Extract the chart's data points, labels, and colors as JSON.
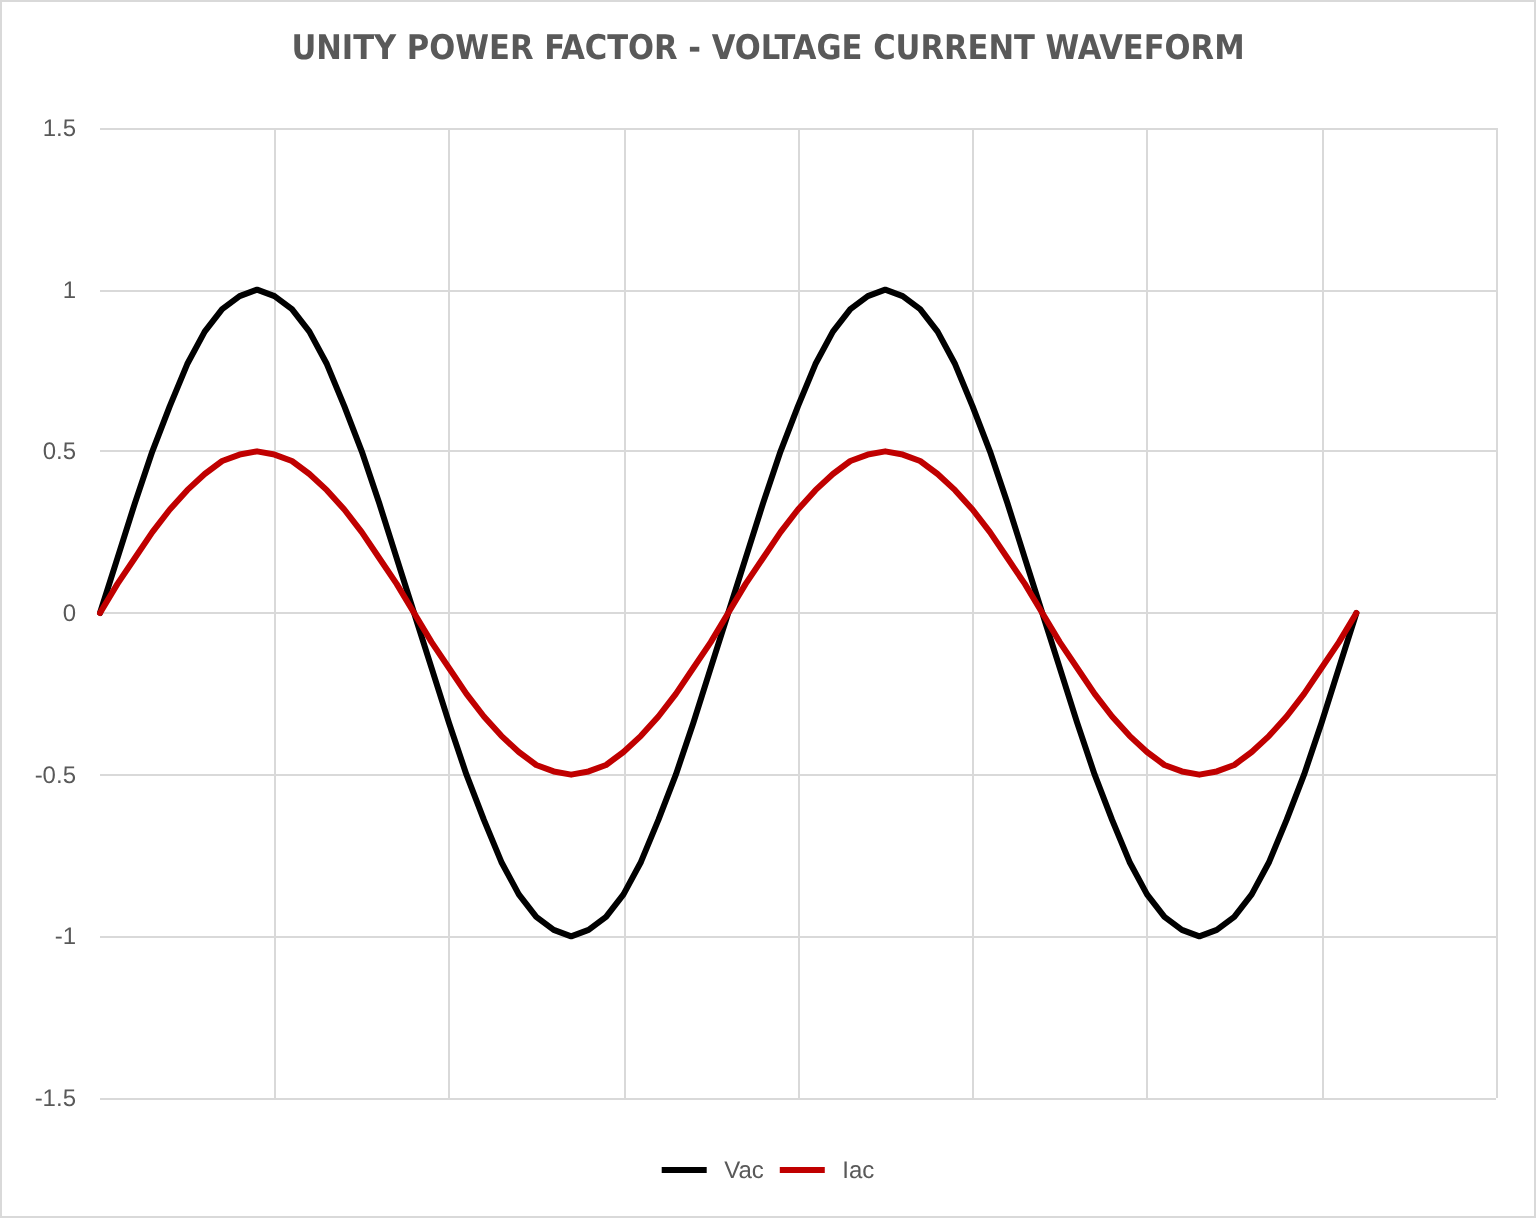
{
  "chart_data": {
    "type": "line",
    "title": "UNITY POWER FACTOR - VOLTAGE CURRENT WAVEFORM",
    "categories": [
      null,
      null,
      null,
      null,
      null,
      null,
      null,
      null,
      null,
      null,
      null,
      null,
      null,
      null,
      null,
      null,
      null,
      null,
      null,
      null,
      null,
      null,
      null,
      null,
      null,
      null,
      null,
      null,
      null,
      null,
      null,
      null,
      null,
      null,
      null,
      null,
      null,
      null,
      null,
      null,
      null,
      null,
      null,
      null,
      null,
      null,
      null,
      null,
      null,
      null,
      null,
      null,
      null,
      null,
      null,
      null,
      null,
      null,
      null,
      null,
      null,
      null,
      null,
      null,
      null,
      null,
      null,
      null,
      null,
      null,
      null,
      null,
      null,
      null,
      null,
      null,
      null,
      null,
      null,
      null,
      null
    ],
    "series": [
      {
        "name": "Vac",
        "color": "#000000",
        "values": [
          0,
          0.17,
          0.34,
          0.5,
          0.64,
          0.77,
          0.87,
          0.94,
          0.98,
          1,
          0.98,
          0.94,
          0.87,
          0.77,
          0.64,
          0.5,
          0.34,
          0.17,
          0,
          -0.17,
          -0.34,
          -0.5,
          -0.64,
          -0.77,
          -0.87,
          -0.94,
          -0.98,
          -1,
          -0.98,
          -0.94,
          -0.87,
          -0.77,
          -0.64,
          -0.5,
          -0.34,
          -0.17,
          0,
          0.17,
          0.34,
          0.5,
          0.64,
          0.77,
          0.87,
          0.94,
          0.98,
          1,
          0.98,
          0.94,
          0.87,
          0.77,
          0.64,
          0.5,
          0.34,
          0.17,
          0,
          -0.17,
          -0.34,
          -0.5,
          -0.64,
          -0.77,
          -0.87,
          -0.94,
          -0.98,
          -1,
          -0.98,
          -0.94,
          -0.87,
          -0.77,
          -0.64,
          -0.5,
          -0.34,
          -0.17,
          0,
          null,
          null,
          null,
          null,
          null,
          null,
          null,
          null
        ]
      },
      {
        "name": "Iac",
        "color": "#c00000",
        "values": [
          0,
          0.09,
          0.17,
          0.25,
          0.32,
          0.38,
          0.43,
          0.47,
          0.49,
          0.5,
          0.49,
          0.47,
          0.43,
          0.38,
          0.32,
          0.25,
          0.17,
          0.09,
          0,
          -0.09,
          -0.17,
          -0.25,
          -0.32,
          -0.38,
          -0.43,
          -0.47,
          -0.49,
          -0.5,
          -0.49,
          -0.47,
          -0.43,
          -0.38,
          -0.32,
          -0.25,
          -0.17,
          -0.09,
          0,
          0.09,
          0.17,
          0.25,
          0.32,
          0.38,
          0.43,
          0.47,
          0.49,
          0.5,
          0.49,
          0.47,
          0.43,
          0.38,
          0.32,
          0.25,
          0.17,
          0.09,
          0,
          -0.09,
          -0.17,
          -0.25,
          -0.32,
          -0.38,
          -0.43,
          -0.47,
          -0.49,
          -0.5,
          -0.49,
          -0.47,
          -0.43,
          -0.38,
          -0.32,
          -0.25,
          -0.17,
          -0.09,
          0,
          null,
          null,
          null,
          null,
          null,
          null,
          null,
          null
        ]
      }
    ],
    "ylim": [
      -1.5,
      1.5
    ],
    "yticks": [
      -1.5,
      -1,
      -0.5,
      0,
      0.5,
      1,
      1.5
    ],
    "grid": true,
    "legend": "bottom",
    "line_style": "solid"
  }
}
